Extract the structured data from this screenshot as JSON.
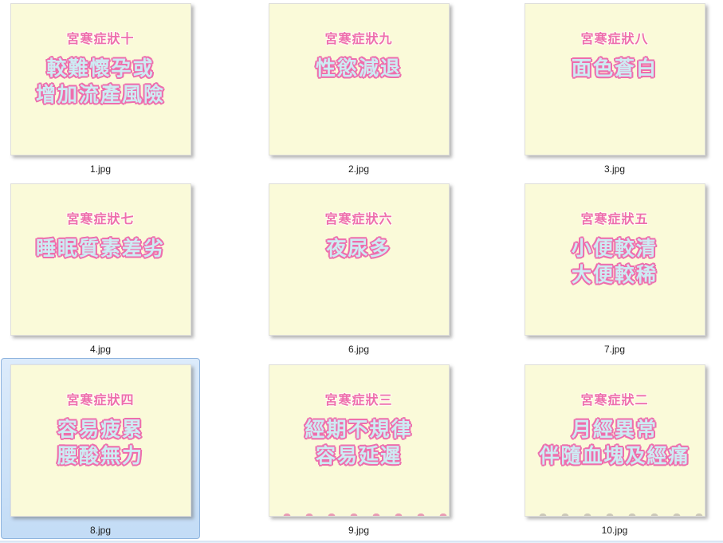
{
  "view": {
    "kind": "file-explorer-thumbnail-grid",
    "selected_file": "8.jpg"
  },
  "colors": {
    "page_background": "#ffffff",
    "thumbnail_background": "#fafad9",
    "title_pink": "#ee6ead",
    "body_text_cyan": "#cdebf3",
    "body_outline_pink": "#ee6ead",
    "selection_fill": "#c3dcf6",
    "selection_border": "#8fb4de"
  },
  "items": [
    {
      "filename": "1.jpg",
      "title": "宮寒症狀十",
      "line1": "較難懷孕或",
      "line2": "增加流產風險",
      "selected": false
    },
    {
      "filename": "2.jpg",
      "title": "宮寒症狀九",
      "line1": "性慾減退",
      "line2": "",
      "selected": false
    },
    {
      "filename": "3.jpg",
      "title": "宮寒症狀八",
      "line1": "面色蒼白",
      "line2": "",
      "selected": false
    },
    {
      "filename": "4.jpg",
      "title": "宮寒症狀七",
      "line1": "睡眠質素差劣",
      "line2": "",
      "selected": false
    },
    {
      "filename": "6.jpg",
      "title": "宮寒症狀六",
      "line1": "夜尿多",
      "line2": "",
      "selected": false
    },
    {
      "filename": "7.jpg",
      "title": "宮寒症狀五",
      "line1": "小便較清",
      "line2": "大便較稀",
      "selected": false
    },
    {
      "filename": "8.jpg",
      "title": "宮寒症狀四",
      "line1": "容易疲累",
      "line2": "腰酸無力",
      "selected": true
    },
    {
      "filename": "9.jpg",
      "title": "宮寒症狀三",
      "line1": "經期不規律",
      "line2": "容易延遲",
      "selected": false
    },
    {
      "filename": "10.jpg",
      "title": "宮寒症狀二",
      "line1": "月經異常",
      "line2": "伴隨血塊及經痛",
      "selected": false
    }
  ]
}
